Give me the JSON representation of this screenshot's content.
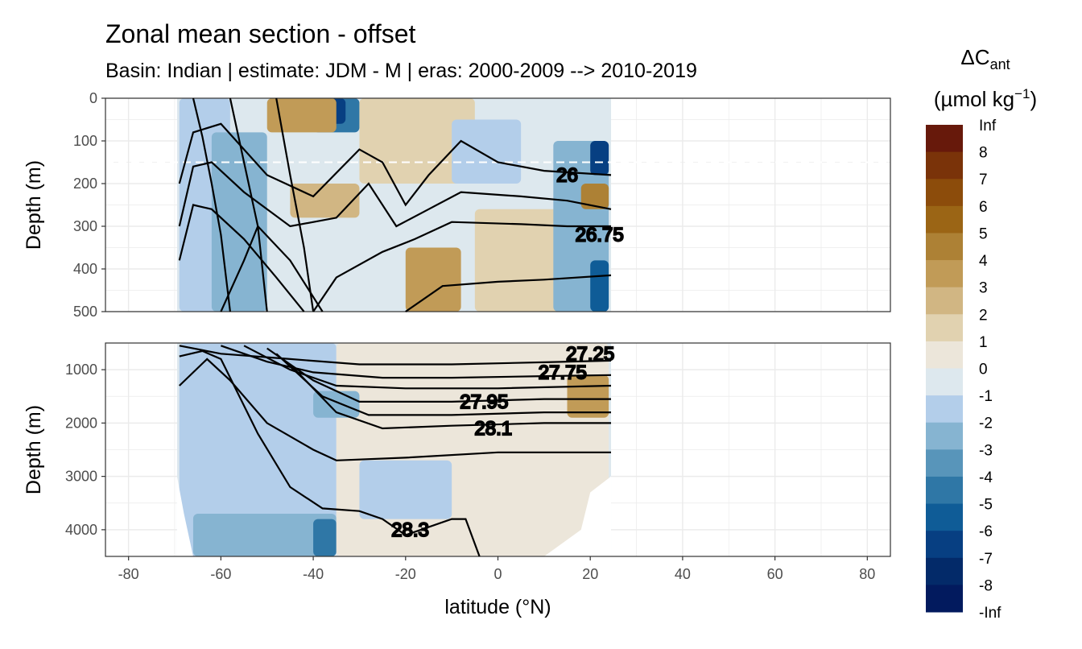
{
  "chart_data": {
    "type": "heatmap",
    "title": "Zonal mean section - offset",
    "subtitle": "Basin: Indian | estimate: JDM - M | eras: 2000-2009 --> 2010-2019",
    "xlabel": "latitude (°N)",
    "ylabel": "Depth (m)",
    "xlim": [
      -85,
      85
    ],
    "xticks": [
      -80,
      -60,
      -40,
      -20,
      0,
      20,
      40,
      60,
      80
    ],
    "data_lat_range": [
      -69.5,
      24.5
    ],
    "reference_depth_line": 150,
    "panels": [
      {
        "name": "upper",
        "ylim": [
          0,
          500
        ],
        "yticks": [
          0,
          100,
          200,
          300,
          400,
          500
        ]
      },
      {
        "name": "lower",
        "ylim": [
          500,
          4500
        ],
        "yticks": [
          1000,
          2000,
          3000,
          4000
        ]
      }
    ],
    "legend": {
      "title": "ΔC_ant",
      "title_main": "ΔC",
      "title_sub": "ant",
      "unit_main": "(µmol kg",
      "unit_sup": "−1",
      "unit_close": ")",
      "breaks": [
        "Inf",
        "8",
        "7",
        "6",
        "5",
        "4",
        "3",
        "2",
        "1",
        "0",
        "-1",
        "-2",
        "-3",
        "-4",
        "-5",
        "-6",
        "-7",
        "-8",
        "-Inf"
      ],
      "colors": [
        "#67190b",
        "#7a3309",
        "#8c4c0b",
        "#9b6515",
        "#ad8135",
        "#c19b57",
        "#d1b683",
        "#e1d2b0",
        "#ece6da",
        "#dde8ee",
        "#b3ceea",
        "#86b4d1",
        "#5895ba",
        "#2f77a6",
        "#0f5c97",
        "#073f82",
        "#032a69",
        "#021a5e"
      ],
      "position": "right"
    },
    "contours": [
      {
        "label": "26",
        "lat": 15,
        "depth": 180
      },
      {
        "label": "26.75",
        "lat": 22,
        "depth": 320
      },
      {
        "label": "27.25",
        "lat": 20,
        "depth": 700
      },
      {
        "label": "27.75",
        "lat": 14,
        "depth": 1050
      },
      {
        "label": "27.95",
        "lat": -3,
        "depth": 1600
      },
      {
        "label": "28.1",
        "lat": -1,
        "depth": 2100
      },
      {
        "label": "28.3",
        "lat": -19,
        "depth": 4000
      }
    ],
    "fields": [
      {
        "panel": "upper",
        "lat": [
          -69,
          -58
        ],
        "depth": [
          0,
          500
        ],
        "level": -1
      },
      {
        "panel": "upper",
        "lat": [
          -62,
          -50
        ],
        "depth": [
          80,
          500
        ],
        "level": -2
      },
      {
        "panel": "upper",
        "lat": [
          -40,
          -30
        ],
        "depth": [
          0,
          80
        ],
        "level": -4
      },
      {
        "panel": "upper",
        "lat": [
          -38,
          -33
        ],
        "depth": [
          0,
          60
        ],
        "level": -6
      },
      {
        "panel": "upper",
        "lat": [
          -45,
          -30
        ],
        "depth": [
          200,
          280
        ],
        "level": 2
      },
      {
        "panel": "upper",
        "lat": [
          -30,
          -5
        ],
        "depth": [
          0,
          200
        ],
        "level": 1
      },
      {
        "panel": "upper",
        "lat": [
          -50,
          -35
        ],
        "depth": [
          0,
          80
        ],
        "level": 3
      },
      {
        "panel": "upper",
        "lat": [
          -10,
          5
        ],
        "depth": [
          50,
          200
        ],
        "level": -1
      },
      {
        "panel": "upper",
        "lat": [
          -5,
          15
        ],
        "depth": [
          260,
          500
        ],
        "level": 1
      },
      {
        "panel": "upper",
        "lat": [
          -20,
          -8
        ],
        "depth": [
          350,
          500
        ],
        "level": 3
      },
      {
        "panel": "upper",
        "lat": [
          12,
          24
        ],
        "depth": [
          100,
          500
        ],
        "level": -2
      },
      {
        "panel": "upper",
        "lat": [
          20,
          24
        ],
        "depth": [
          100,
          180
        ],
        "level": -6
      },
      {
        "panel": "upper",
        "lat": [
          20,
          24
        ],
        "depth": [
          380,
          500
        ],
        "level": -5
      },
      {
        "panel": "upper",
        "lat": [
          18,
          24
        ],
        "depth": [
          200,
          260
        ],
        "level": 4
      },
      {
        "panel": "lower",
        "lat": [
          -69,
          -35
        ],
        "depth": [
          500,
          4500
        ],
        "level": -1
      },
      {
        "panel": "lower",
        "lat": [
          -66,
          -35
        ],
        "depth": [
          3700,
          4500
        ],
        "level": -2
      },
      {
        "panel": "lower",
        "lat": [
          -40,
          -35
        ],
        "depth": [
          3800,
          4500
        ],
        "level": -4
      },
      {
        "panel": "lower",
        "lat": [
          -35,
          24
        ],
        "depth": [
          500,
          4500
        ],
        "level": 0.5
      },
      {
        "panel": "lower",
        "lat": [
          -30,
          -10
        ],
        "depth": [
          2700,
          3800
        ],
        "level": -1
      },
      {
        "panel": "lower",
        "lat": [
          15,
          24
        ],
        "depth": [
          1100,
          1900
        ],
        "level": 3
      },
      {
        "panel": "lower",
        "lat": [
          -40,
          -30
        ],
        "depth": [
          1400,
          1900
        ],
        "level": -2
      }
    ]
  }
}
